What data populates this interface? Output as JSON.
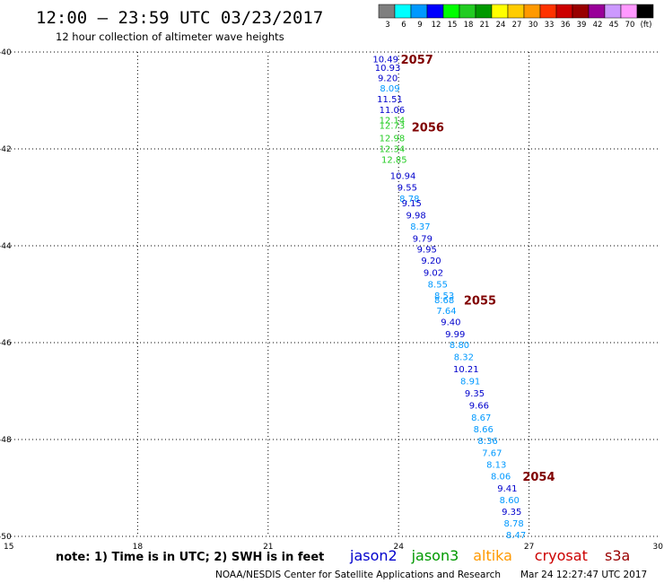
{
  "header": {
    "title": "12:00 – 23:59 UTC 03/23/2017",
    "subtitle": "12 hour collection of altimeter wave heights"
  },
  "colorbar": {
    "colors": [
      "#7f7f7f",
      "#00ffff",
      "#0099ff",
      "#0000ff",
      "#00ff00",
      "#22cc22",
      "#009900",
      "#ffff00",
      "#ffcc00",
      "#ff9900",
      "#ff3300",
      "#cc0000",
      "#990000",
      "#990099",
      "#cc99ff",
      "#ff99ff",
      "#000000"
    ],
    "labels": [
      "3",
      "6",
      "9",
      "12",
      "15",
      "18",
      "21",
      "24",
      "27",
      "30",
      "33",
      "36",
      "39",
      "42",
      "45",
      "70",
      "(ft)"
    ]
  },
  "chart_data": {
    "type": "scatter",
    "xlim": [
      15,
      30
    ],
    "ylim": [
      -50,
      -40
    ],
    "x_ticks": [
      "15",
      "18",
      "21",
      "24",
      "27",
      "30"
    ],
    "y_ticks": [
      "-40",
      "-42",
      "-44",
      "-46",
      "-48",
      "-50"
    ],
    "grid": true,
    "points": [
      {
        "lon": 23.7,
        "lat": -40.15,
        "text": "10.49",
        "color": "#0000cc"
      },
      {
        "lon": 23.75,
        "lat": -40.32,
        "text": "10.93",
        "color": "#0000cc"
      },
      {
        "lon": 23.75,
        "lat": -40.54,
        "text": "9.20",
        "color": "#0000cc"
      },
      {
        "lon": 23.8,
        "lat": -40.75,
        "text": "8.09",
        "color": "#0099ff"
      },
      {
        "lon": 23.8,
        "lat": -40.97,
        "text": "11.51",
        "color": "#0000cc"
      },
      {
        "lon": 23.85,
        "lat": -41.19,
        "text": "11.06",
        "color": "#0000cc"
      },
      {
        "lon": 23.85,
        "lat": -41.41,
        "text": "12.14",
        "color": "#22cc22"
      },
      {
        "lon": 23.85,
        "lat": -41.52,
        "text": "12.73",
        "color": "#22cc22"
      },
      {
        "lon": 23.85,
        "lat": -41.78,
        "text": "12.98",
        "color": "#22cc22"
      },
      {
        "lon": 23.85,
        "lat": -42.0,
        "text": "12.34",
        "color": "#22cc22"
      },
      {
        "lon": 23.9,
        "lat": -42.22,
        "text": "12.85",
        "color": "#22cc22"
      },
      {
        "lon": 24.1,
        "lat": -42.56,
        "text": "10.94",
        "color": "#0000cc"
      },
      {
        "lon": 24.2,
        "lat": -42.8,
        "text": "9.55",
        "color": "#0000cc"
      },
      {
        "lon": 24.25,
        "lat": -43.03,
        "text": "8.78",
        "color": "#0099ff"
      },
      {
        "lon": 24.3,
        "lat": -43.12,
        "text": "9.15",
        "color": "#0000cc"
      },
      {
        "lon": 24.4,
        "lat": -43.37,
        "text": "9.98",
        "color": "#0000cc"
      },
      {
        "lon": 24.5,
        "lat": -43.6,
        "text": "8.37",
        "color": "#0099ff"
      },
      {
        "lon": 24.55,
        "lat": -43.85,
        "text": "9.79",
        "color": "#0000cc"
      },
      {
        "lon": 24.65,
        "lat": -44.07,
        "text": "9.95",
        "color": "#0000cc"
      },
      {
        "lon": 24.75,
        "lat": -44.31,
        "text": "9.20",
        "color": "#0000cc"
      },
      {
        "lon": 24.8,
        "lat": -44.56,
        "text": "9.02",
        "color": "#0000cc"
      },
      {
        "lon": 24.9,
        "lat": -44.8,
        "text": "8.55",
        "color": "#0099ff"
      },
      {
        "lon": 25.05,
        "lat": -45.03,
        "text": "8.53",
        "color": "#0099ff"
      },
      {
        "lon": 25.05,
        "lat": -45.12,
        "text": "8.68",
        "color": "#0099ff"
      },
      {
        "lon": 25.1,
        "lat": -45.34,
        "text": "7.64",
        "color": "#0099ff"
      },
      {
        "lon": 25.2,
        "lat": -45.57,
        "text": "9.40",
        "color": "#0000cc"
      },
      {
        "lon": 25.3,
        "lat": -45.82,
        "text": "9.99",
        "color": "#0000cc"
      },
      {
        "lon": 25.4,
        "lat": -46.05,
        "text": "8.80",
        "color": "#0099ff"
      },
      {
        "lon": 25.5,
        "lat": -46.3,
        "text": "8.32",
        "color": "#0099ff"
      },
      {
        "lon": 25.55,
        "lat": -46.55,
        "text": "10.21",
        "color": "#0000cc"
      },
      {
        "lon": 25.65,
        "lat": -46.8,
        "text": "8.91",
        "color": "#0099ff"
      },
      {
        "lon": 25.75,
        "lat": -47.05,
        "text": "9.35",
        "color": "#0000cc"
      },
      {
        "lon": 25.85,
        "lat": -47.3,
        "text": "9.66",
        "color": "#0000cc"
      },
      {
        "lon": 25.9,
        "lat": -47.55,
        "text": "8.67",
        "color": "#0099ff"
      },
      {
        "lon": 25.95,
        "lat": -47.79,
        "text": "8.66",
        "color": "#0099ff"
      },
      {
        "lon": 26.05,
        "lat": -48.03,
        "text": "8.36",
        "color": "#0099ff"
      },
      {
        "lon": 26.15,
        "lat": -48.28,
        "text": "7.67",
        "color": "#0099ff"
      },
      {
        "lon": 26.25,
        "lat": -48.52,
        "text": "8.13",
        "color": "#0099ff"
      },
      {
        "lon": 26.35,
        "lat": -48.76,
        "text": "8.06",
        "color": "#0099ff"
      },
      {
        "lon": 26.5,
        "lat": -49.01,
        "text": "9.41",
        "color": "#0000cc"
      },
      {
        "lon": 26.55,
        "lat": -49.25,
        "text": "8.60",
        "color": "#0099ff"
      },
      {
        "lon": 26.6,
        "lat": -49.49,
        "text": "9.35",
        "color": "#0000cc"
      },
      {
        "lon": 26.65,
        "lat": -49.73,
        "text": "8.78",
        "color": "#0099ff"
      },
      {
        "lon": 26.7,
        "lat": -49.97,
        "text": "8.47",
        "color": "#0099ff"
      }
    ],
    "time_labels": [
      {
        "lon": 24.05,
        "lat": -40.15,
        "text": "2057",
        "color": "#800000"
      },
      {
        "lon": 24.3,
        "lat": -41.55,
        "text": "2056",
        "color": "#800000"
      },
      {
        "lon": 25.5,
        "lat": -45.12,
        "text": "2055",
        "color": "#800000"
      },
      {
        "lon": 26.85,
        "lat": -48.76,
        "text": "2054",
        "color": "#800000"
      }
    ]
  },
  "footer": {
    "note": "note: 1) Time is in UTC; 2) SWH is in feet",
    "missions": [
      {
        "name": "jason2",
        "color": "#0000cc"
      },
      {
        "name": "jason3",
        "color": "#009900"
      },
      {
        "name": "altika",
        "color": "#ff9900"
      },
      {
        "name": "cryosat",
        "color": "#cc0000"
      },
      {
        "name": "s3a",
        "color": "#990000"
      }
    ],
    "credit": "NOAA/NESDIS Center for Satellite Applications and Research",
    "timestamp": "Mar 24 12:27:47 UTC 2017"
  }
}
